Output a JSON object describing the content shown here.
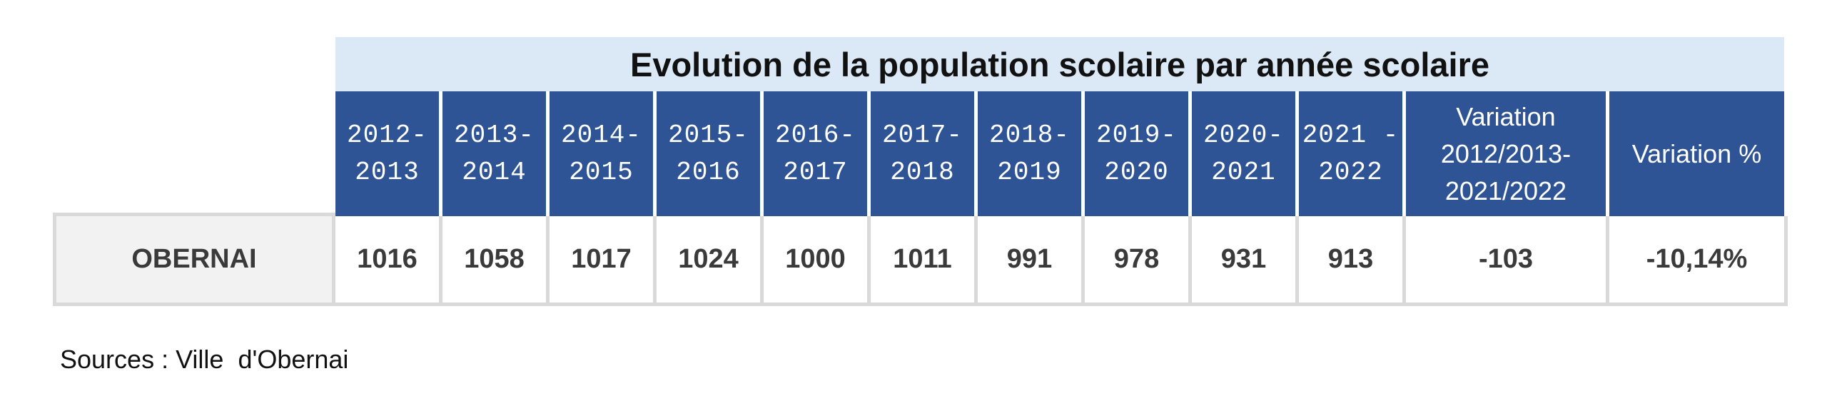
{
  "table": {
    "title": "Evolution de la population scolaire par année scolaire",
    "year_headers": [
      "2012-\n2013",
      "2013-\n2014",
      "2014-\n2015",
      "2015-\n2016",
      "2016-\n2017",
      "2017-\n2018",
      "2018-\n2019",
      "2019-\n2020",
      "2020-\n2021",
      "2021 -\n2022"
    ],
    "variation_header": "Variation\n2012/2013-\n2021/2022",
    "variation_pct_header": "Variation %",
    "row": {
      "label": "OBERNAI",
      "values": [
        "1016",
        "1058",
        "1017",
        "1024",
        "1000",
        "1011",
        "991",
        "978",
        "931",
        "913"
      ],
      "variation": "-103",
      "variation_pct": "-10,14%"
    },
    "colors": {
      "title_band": "#dbe9f7",
      "header_fill": "#2f5496",
      "label_fill": "#f2f2f2",
      "border": "#d9d9d9"
    }
  },
  "footer": {
    "sources": "Sources : Ville  d'Obernai"
  }
}
